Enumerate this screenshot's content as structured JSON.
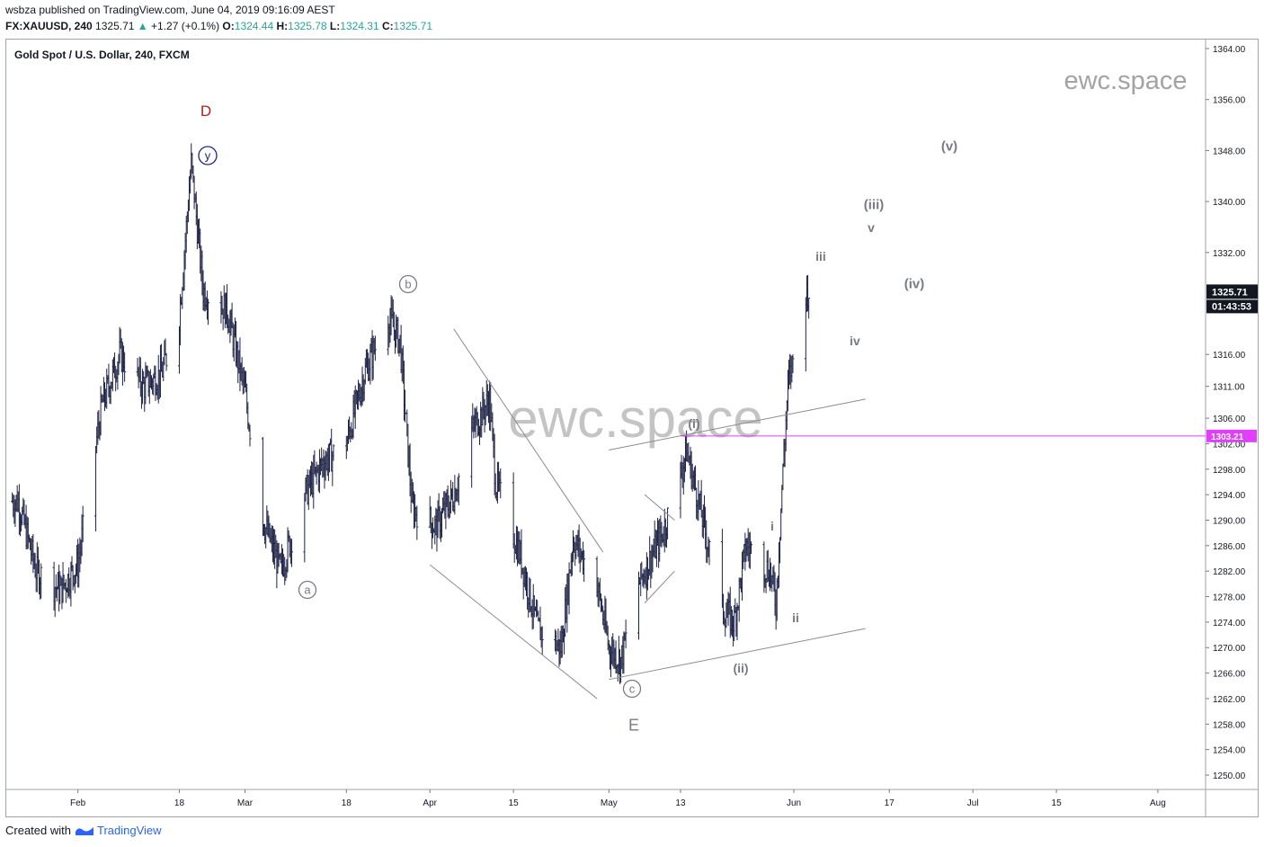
{
  "header": {
    "publisher": "wsbza",
    "published_text": "published on TradingView.com, June 04, 2019 09:16:09 AEST",
    "symbol": "FX:XAUUSD, 240",
    "last": "1325.71",
    "change": "+1.27 (+0.1%)",
    "o_label": "O:",
    "open": "1324.44",
    "h_label": "H:",
    "high": "1325.78",
    "l_label": "L:",
    "low": "1324.31",
    "c_label": "C:",
    "close": "1325.71"
  },
  "footer": {
    "created_with": "Created with",
    "brand": "TradingView"
  },
  "colors": {
    "candles": "#1e2345",
    "trendlines": "#8a8c93",
    "hline": "#e040fb",
    "price_label_bg": "#131722",
    "wave_d": "#b71c1c",
    "wave_y": "#1a237e",
    "labels": "#787b86",
    "watermark": "#c4c4c4",
    "up": "#26a69a"
  },
  "chart_data": {
    "type": "line",
    "title": "Gold Spot / U.S. Dollar, 240, FXCM",
    "watermark": "ewc.space",
    "chart_style": "ohlc-bars",
    "x_ticks": [
      "Feb",
      "18",
      "Mar",
      "18",
      "Apr",
      "15",
      "May",
      "13",
      "Jun",
      "17",
      "Jul",
      "15",
      "Aug"
    ],
    "y_ticks": [
      1250,
      1254,
      1258,
      1262,
      1266,
      1270,
      1274,
      1278,
      1282,
      1286,
      1290,
      1294,
      1298,
      1302,
      1306,
      1311,
      1316,
      1332,
      1340,
      1348,
      1356,
      1364
    ],
    "ylim": [
      1247,
      1365
    ],
    "last_price": "1325.71",
    "countdown": "01:43:53",
    "horizontal_line": {
      "value": 1303.21,
      "label": "1303.21"
    },
    "x": [
      "Jan 22",
      "Jan 25",
      "Jan 29",
      "Feb 01",
      "Feb 05",
      "Feb 08",
      "Feb 12",
      "Feb 15",
      "Feb 18",
      "Feb 20",
      "Feb 22",
      "Feb 26",
      "Mar 01",
      "Mar 04",
      "Mar 07",
      "Mar 11",
      "Mar 14",
      "Mar 18",
      "Mar 21",
      "Mar 25",
      "Mar 27",
      "Mar 29",
      "Apr 02",
      "Apr 05",
      "Apr 08",
      "Apr 11",
      "Apr 12",
      "Apr 16",
      "Apr 19",
      "Apr 23",
      "Apr 25",
      "Apr 29",
      "May 01",
      "May 03",
      "May 06",
      "May 08",
      "May 10",
      "May 13",
      "May 14",
      "May 16",
      "May 20",
      "May 22",
      "May 24",
      "May 28",
      "May 29",
      "May 30",
      "May 31",
      "Jun 03"
    ],
    "series": [
      {
        "values": [
          1293,
          1282,
          1279,
          1283,
          1308,
          1316,
          1311,
          1313,
          1322,
          1346,
          1326,
          1323,
          1310,
          1290,
          1282,
          1294,
          1299,
          1302,
          1313,
          1322,
          1318,
          1292,
          1289,
          1294,
          1304,
          1309,
          1296,
          1285,
          1273,
          1270,
          1287,
          1280,
          1270,
          1268,
          1280,
          1284,
          1288,
          1297,
          1301,
          1293,
          1276,
          1274,
          1286,
          1282,
          1277,
          1295,
          1311,
          1326
        ]
      }
    ],
    "wave_labels": [
      "D",
      "y",
      "b",
      "a",
      "c",
      "E",
      "(i)",
      "(ii)",
      "i",
      "ii",
      "iii",
      "iv",
      "v",
      "(iii)",
      "(iv)",
      "(v)"
    ],
    "lines": [
      {
        "from": [
          "Apr 05",
          1320
        ],
        "to": [
          "Apr 30",
          1285
        ]
      },
      {
        "from": [
          "Apr 01",
          1283
        ],
        "to": [
          "Apr 29",
          1262
        ]
      },
      {
        "from": [
          "May 01",
          1301
        ],
        "to": [
          "Jun 13",
          1309
        ]
      },
      {
        "from": [
          "May 01",
          1265
        ],
        "to": [
          "Jun 13",
          1273
        ]
      },
      {
        "from": [
          "May 07",
          1294
        ],
        "to": [
          "May 12",
          1290
        ]
      },
      {
        "from": [
          "May 07",
          1277
        ],
        "to": [
          "May 12",
          1282
        ]
      }
    ]
  }
}
